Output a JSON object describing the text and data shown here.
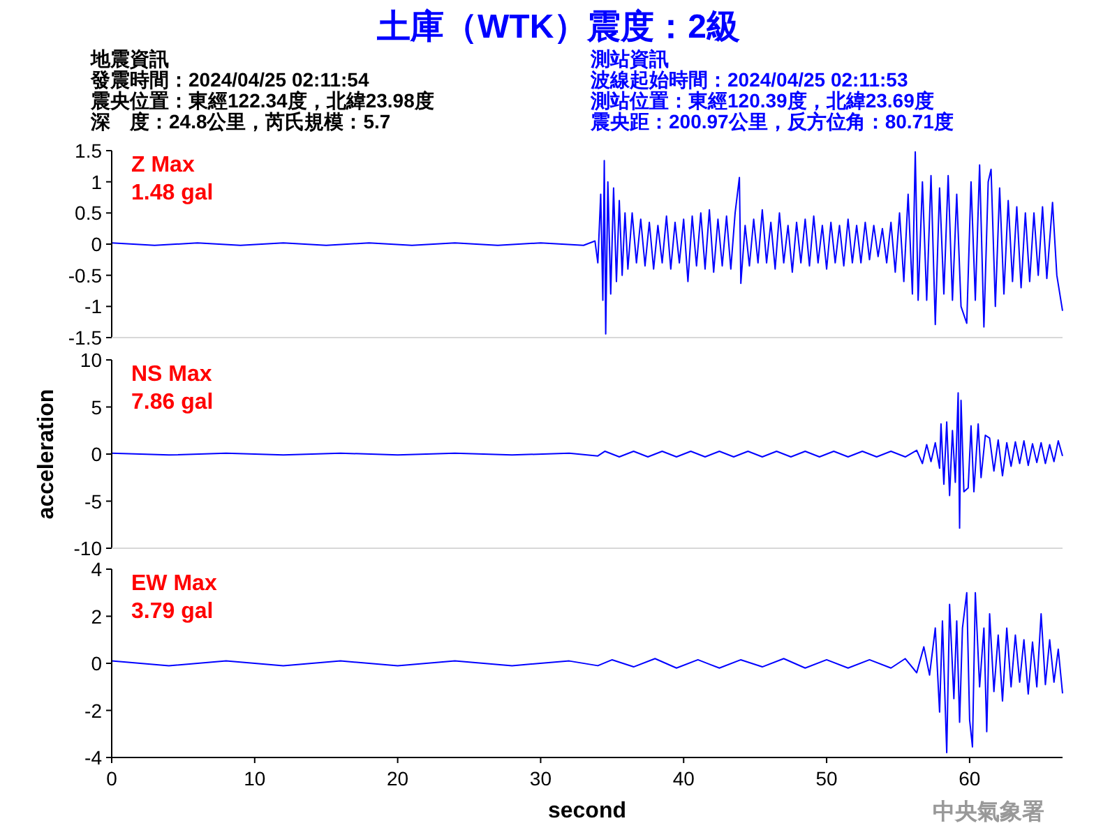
{
  "chart_data": [
    {
      "type": "other",
      "title": "土庫（WTK）震度：2級",
      "annotations": [
        "地震資訊",
        "發震時間：2024/04/25 02:11:54",
        "震央位置：東經122.34度，北緯23.98度",
        "深　度：24.8公里，芮氏規模：5.7",
        "測站資訊",
        "波線起始時間：2024/04/25 02:11:53",
        "測站位置：東經120.39度，北緯23.69度",
        "震央距：200.97公里，反方位角：80.71度"
      ]
    },
    {
      "type": "line",
      "xlim": [
        0,
        66.5
      ],
      "ylim": [
        -1.5,
        1.5
      ],
      "yticks": [
        -1.5,
        -1,
        -0.5,
        0,
        0.5,
        1,
        1.5
      ],
      "tick_labels": "y",
      "annotations": [
        "Z Max",
        "1.48 gal"
      ],
      "series": [
        {
          "color": "#0000ff",
          "x": [
            0,
            3,
            6,
            9,
            12,
            15,
            18,
            21,
            24,
            27,
            30,
            33,
            33.8,
            34.0,
            34.2,
            34.35,
            34.45,
            34.55,
            34.7,
            34.9,
            35.1,
            35.3,
            35.5,
            35.7,
            35.9,
            36.1,
            36.4,
            36.7,
            37.0,
            37.3,
            37.6,
            37.9,
            38.2,
            38.5,
            38.8,
            39.1,
            39.4,
            39.7,
            40.0,
            40.3,
            40.6,
            40.9,
            41.2,
            41.5,
            41.8,
            42.1,
            42.4,
            42.7,
            43.0,
            43.3,
            43.6,
            43.9,
            44.0,
            44.3,
            44.6,
            44.9,
            45.2,
            45.5,
            45.8,
            46.1,
            46.4,
            46.7,
            47.0,
            47.3,
            47.6,
            47.9,
            48.2,
            48.5,
            48.8,
            49.1,
            49.4,
            49.7,
            50.0,
            50.3,
            50.6,
            50.9,
            51.2,
            51.5,
            51.8,
            52.1,
            52.4,
            52.7,
            53.0,
            53.3,
            53.6,
            53.9,
            54.2,
            54.5,
            54.8,
            55.1,
            55.4,
            55.7,
            56.0,
            56.2,
            56.4,
            56.7,
            57.0,
            57.3,
            57.6,
            57.9,
            58.2,
            58.5,
            58.8,
            59.1,
            59.4,
            59.8,
            60.1,
            60.4,
            60.7,
            61.0,
            61.3,
            61.5,
            61.8,
            62.1,
            62.4,
            62.7,
            63.0,
            63.3,
            63.6,
            63.9,
            64.2,
            64.5,
            64.8,
            65.1,
            65.4,
            65.8,
            66.1,
            66.5
          ],
          "values": [
            0.02,
            -0.02,
            0.02,
            -0.02,
            0.02,
            -0.02,
            0.02,
            -0.02,
            0.02,
            -0.02,
            0.02,
            -0.02,
            0.05,
            -0.3,
            0.8,
            -0.9,
            1.34,
            -1.44,
            1.0,
            -0.8,
            0.9,
            -0.6,
            0.7,
            -0.5,
            0.5,
            -0.4,
            0.5,
            -0.3,
            0.4,
            -0.35,
            0.35,
            -0.4,
            0.3,
            -0.3,
            0.45,
            -0.4,
            0.35,
            -0.3,
            0.4,
            -0.6,
            0.45,
            -0.35,
            0.5,
            -0.4,
            0.55,
            -0.45,
            0.4,
            -0.35,
            0.45,
            -0.4,
            0.5,
            1.07,
            -0.63,
            0.3,
            -0.35,
            0.4,
            -0.3,
            0.55,
            -0.3,
            0.35,
            -0.4,
            0.5,
            -0.3,
            0.3,
            -0.45,
            0.35,
            -0.3,
            0.4,
            -0.35,
            0.45,
            -0.3,
            0.3,
            -0.4,
            0.35,
            -0.3,
            0.3,
            -0.35,
            0.4,
            -0.3,
            0.3,
            -0.3,
            0.35,
            -0.25,
            0.3,
            -0.2,
            0.25,
            -0.3,
            0.35,
            -0.45,
            0.5,
            -0.6,
            0.8,
            -0.8,
            1.48,
            -0.9,
            1.0,
            -0.9,
            1.1,
            -1.29,
            0.9,
            -0.8,
            1.1,
            -0.9,
            0.8,
            -1.0,
            -1.27,
            1.0,
            -0.9,
            1.27,
            -1.33,
            1.0,
            1.2,
            -1.0,
            0.9,
            -0.8,
            0.7,
            -0.6,
            0.6,
            -0.7,
            0.5,
            -0.6,
            0.5,
            -0.5,
            0.6,
            -0.55,
            0.67,
            -0.5,
            -1.07
          ]
        }
      ]
    },
    {
      "type": "line",
      "xlim": [
        0,
        66.5
      ],
      "ylim": [
        -10,
        10
      ],
      "yticks": [
        -10,
        -5,
        0,
        5,
        10
      ],
      "tick_labels": "y",
      "ylabel": "acceleration",
      "annotations": [
        "NS Max",
        "7.86 gal"
      ],
      "series": [
        {
          "color": "#0000ff",
          "x": [
            0,
            4,
            8,
            12,
            16,
            20,
            24,
            28,
            32,
            34,
            34.5,
            35.5,
            36.5,
            37.5,
            38.5,
            39.5,
            40.5,
            41.5,
            42.5,
            43.5,
            44.5,
            45.5,
            46.5,
            47.5,
            48.5,
            49.5,
            50.5,
            51.5,
            52.5,
            53.5,
            54.5,
            55.5,
            56.3,
            56.7,
            57.0,
            57.3,
            57.6,
            57.9,
            58.0,
            58.2,
            58.4,
            58.6,
            58.8,
            59.0,
            59.2,
            59.3,
            59.4,
            59.6,
            59.9,
            60.1,
            60.3,
            60.6,
            60.8,
            61.1,
            61.4,
            61.7,
            62.0,
            62.3,
            62.6,
            62.9,
            63.2,
            63.5,
            63.8,
            64.1,
            64.4,
            64.7,
            65.0,
            65.3,
            65.6,
            65.9,
            66.2,
            66.5
          ],
          "values": [
            0.1,
            -0.1,
            0.1,
            -0.1,
            0.1,
            -0.1,
            0.1,
            -0.1,
            0.1,
            -0.2,
            0.3,
            -0.3,
            0.3,
            -0.3,
            0.3,
            -0.3,
            0.3,
            -0.3,
            0.3,
            -0.3,
            0.3,
            -0.3,
            0.3,
            -0.3,
            0.3,
            -0.3,
            0.3,
            -0.3,
            0.3,
            -0.3,
            0.3,
            -0.3,
            0.4,
            -1.0,
            1.0,
            -0.8,
            1.2,
            -1.5,
            3.2,
            -3.2,
            3.4,
            -4.4,
            2.5,
            -3.0,
            6.5,
            -7.86,
            5.7,
            -4.0,
            -3.6,
            3.0,
            -4.0,
            3.2,
            -2.5,
            2.0,
            1.7,
            -1.8,
            1.5,
            -2.3,
            1.2,
            -1.3,
            1.3,
            -1.0,
            1.4,
            -1.2,
            1.1,
            -0.9,
            1.2,
            -1.0,
            1.0,
            -0.8,
            1.4,
            -0.2
          ]
        }
      ]
    },
    {
      "type": "line",
      "xlim": [
        0,
        66.5
      ],
      "ylim": [
        -4,
        4
      ],
      "yticks": [
        -4,
        -2,
        0,
        2,
        4
      ],
      "xticks": [
        0,
        10,
        20,
        30,
        40,
        50,
        60
      ],
      "xlabel": "second",
      "annotations": [
        "EW Max",
        "3.79 gal",
        "中央氣象署"
      ],
      "series": [
        {
          "color": "#0000ff",
          "x": [
            0,
            4,
            8,
            12,
            16,
            20,
            24,
            28,
            32,
            34,
            35,
            36.5,
            38,
            39.5,
            41,
            42.5,
            44,
            45.5,
            47,
            48.5,
            50,
            51.5,
            53,
            54.5,
            55.5,
            56.3,
            56.8,
            57.2,
            57.6,
            57.9,
            58.1,
            58.4,
            58.6,
            58.9,
            59.1,
            59.3,
            59.5,
            59.8,
            60.0,
            60.2,
            60.4,
            60.7,
            61.0,
            61.2,
            61.4,
            61.7,
            62.0,
            62.3,
            62.6,
            62.9,
            63.2,
            63.5,
            63.8,
            64.1,
            64.4,
            64.7,
            65.0,
            65.3,
            65.6,
            65.9,
            66.2,
            66.5
          ],
          "values": [
            0.1,
            -0.1,
            0.1,
            -0.1,
            0.1,
            -0.1,
            0.1,
            -0.1,
            0.1,
            -0.1,
            0.15,
            -0.15,
            0.2,
            -0.2,
            0.15,
            -0.2,
            0.15,
            -0.15,
            0.2,
            -0.2,
            0.15,
            -0.2,
            0.15,
            -0.2,
            0.2,
            -0.4,
            0.7,
            -0.5,
            1.5,
            -2.07,
            1.8,
            -3.79,
            2.5,
            -1.5,
            1.8,
            -2.5,
            1.5,
            3.0,
            -2.4,
            -3.55,
            3.0,
            -1.0,
            1.5,
            -2.9,
            2.1,
            -1.2,
            1.2,
            -1.6,
            1.5,
            -1.0,
            1.2,
            -0.8,
            1.0,
            -1.3,
            0.9,
            -1.0,
            2.1,
            -0.9,
            1.0,
            -0.8,
            0.6,
            -1.28
          ]
        }
      ]
    }
  ]
}
